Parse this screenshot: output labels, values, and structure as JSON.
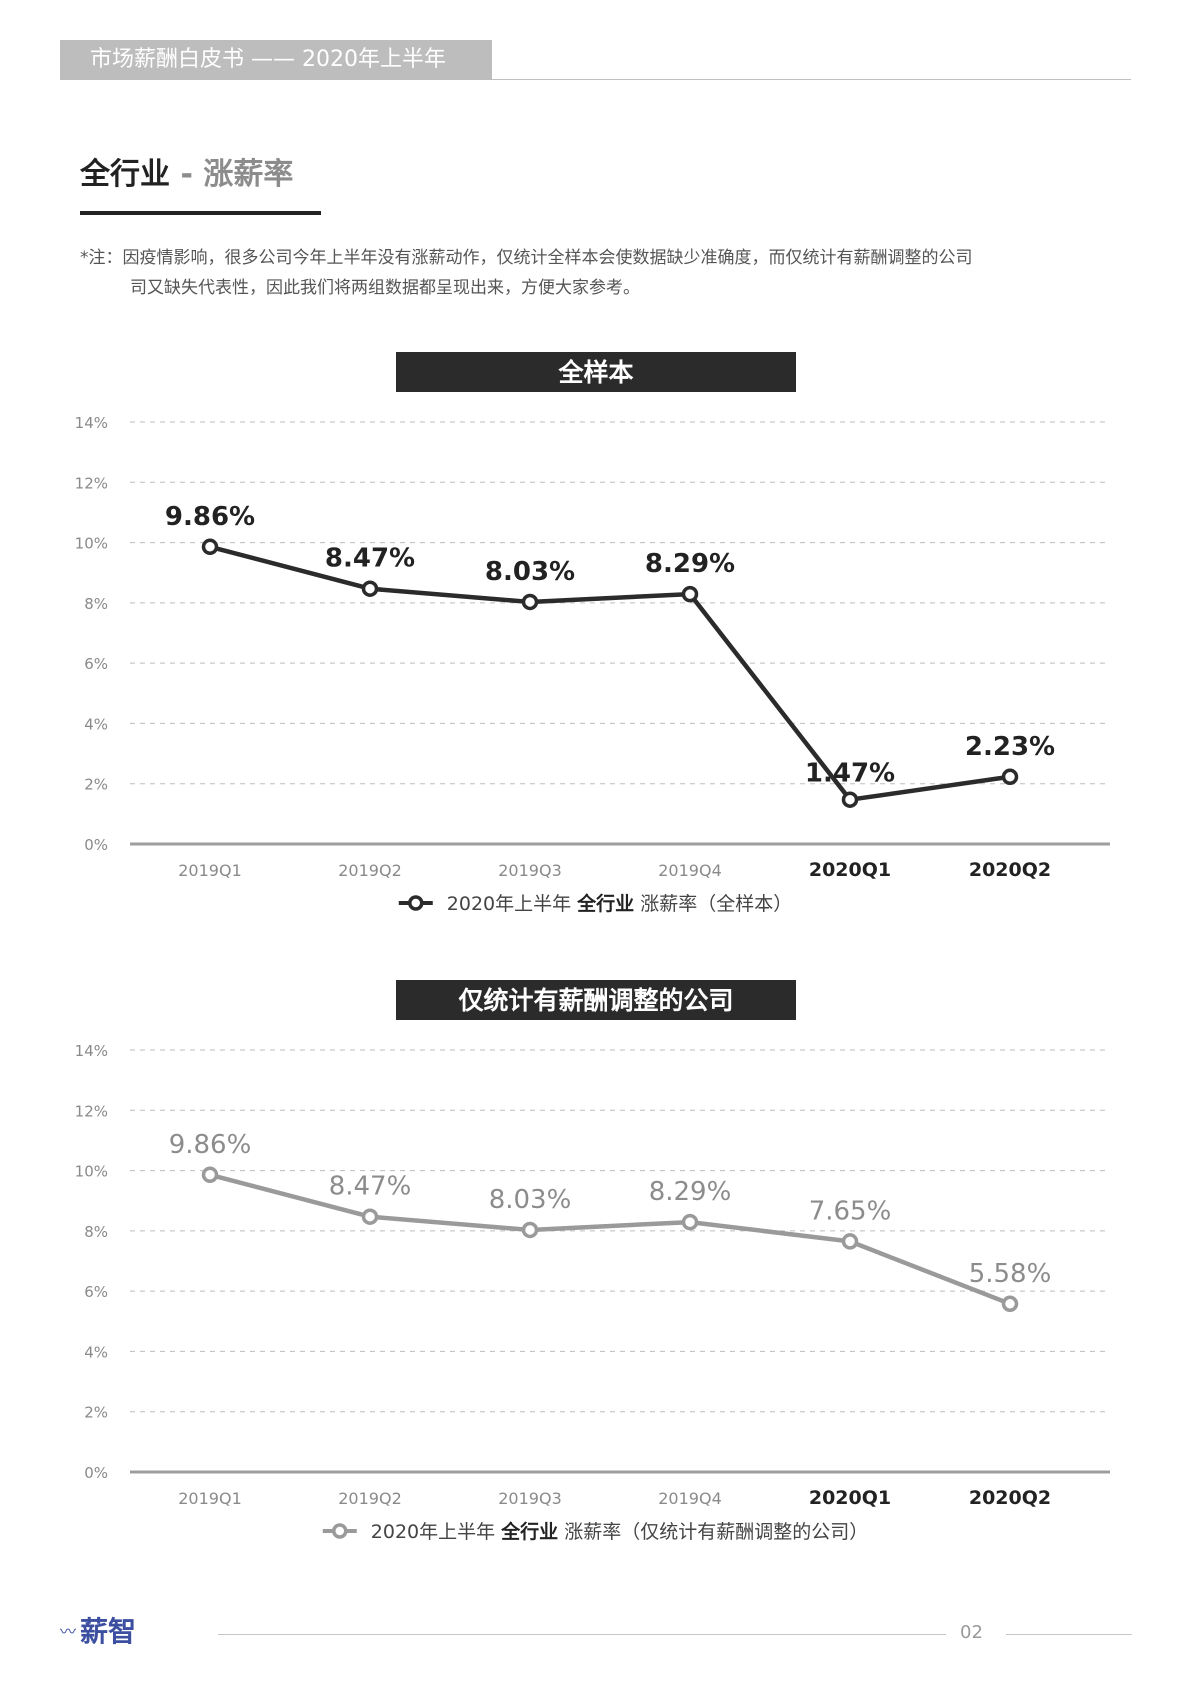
{
  "header": {
    "title": "市场薪酬白皮书 —— 2020年上半年"
  },
  "section": {
    "title_main": "全行业",
    "title_sep": " - ",
    "title_sub": "涨薪率"
  },
  "note": {
    "line1": "*注：因疫情影响，很多公司今年上半年没有涨薪动作，仅统计全样本会使数据缺少准确度，而仅统计有薪酬调整的公司",
    "line2": "司又缺失代表性，因此我们将两组数据都呈现出来，方便大家参考。"
  },
  "footer": {
    "brand": "薪智",
    "brand_mark": "〰",
    "page": "02"
  },
  "colors": {
    "dark_series": "#2b2b2b",
    "gray_series": "#9a9a9a",
    "header_band": "#bdbdbd",
    "logo": "#3c4fa0"
  },
  "chart_data": [
    {
      "type": "line",
      "title": "全样本",
      "categories": [
        "2019Q1",
        "2019Q2",
        "2019Q3",
        "2019Q4",
        "2020Q1",
        "2020Q2"
      ],
      "bold_categories": [
        "2020Q1",
        "2020Q2"
      ],
      "series": [
        {
          "name": "2020年上半年 全行业 涨薪率（全样本）",
          "values": [
            9.86,
            8.47,
            8.03,
            8.29,
            1.47,
            2.23
          ],
          "labels": [
            "9.86%",
            "8.47%",
            "8.03%",
            "8.29%",
            "1.47%",
            "2.23%"
          ]
        }
      ],
      "legend": {
        "prefix": "2020年上半年 ",
        "bold": "全行业",
        "suffix": " 涨薪率（全样本）",
        "position": "bottom-center"
      },
      "yticks": [
        "0%",
        "2%",
        "4%",
        "6%",
        "8%",
        "10%",
        "12%",
        "14%"
      ],
      "ylim": [
        0,
        14
      ],
      "grid": true,
      "color": "#2b2b2b"
    },
    {
      "type": "line",
      "title": "仅统计有薪酬调整的公司",
      "categories": [
        "2019Q1",
        "2019Q2",
        "2019Q3",
        "2019Q4",
        "2020Q1",
        "2020Q2"
      ],
      "bold_categories": [
        "2020Q1",
        "2020Q2"
      ],
      "series": [
        {
          "name": "2020年上半年 全行业 涨薪率（仅统计有薪酬调整的公司）",
          "values": [
            9.86,
            8.47,
            8.03,
            8.29,
            7.65,
            5.58
          ],
          "labels": [
            "9.86%",
            "8.47%",
            "8.03%",
            "8.29%",
            "7.65%",
            "5.58%"
          ]
        }
      ],
      "legend": {
        "prefix": "2020年上半年 ",
        "bold": "全行业",
        "suffix": " 涨薪率（仅统计有薪酬调整的公司）",
        "position": "bottom-center"
      },
      "yticks": [
        "0%",
        "2%",
        "4%",
        "6%",
        "8%",
        "10%",
        "12%",
        "14%"
      ],
      "ylim": [
        0,
        14
      ],
      "grid": true,
      "color": "#9a9a9a"
    }
  ]
}
